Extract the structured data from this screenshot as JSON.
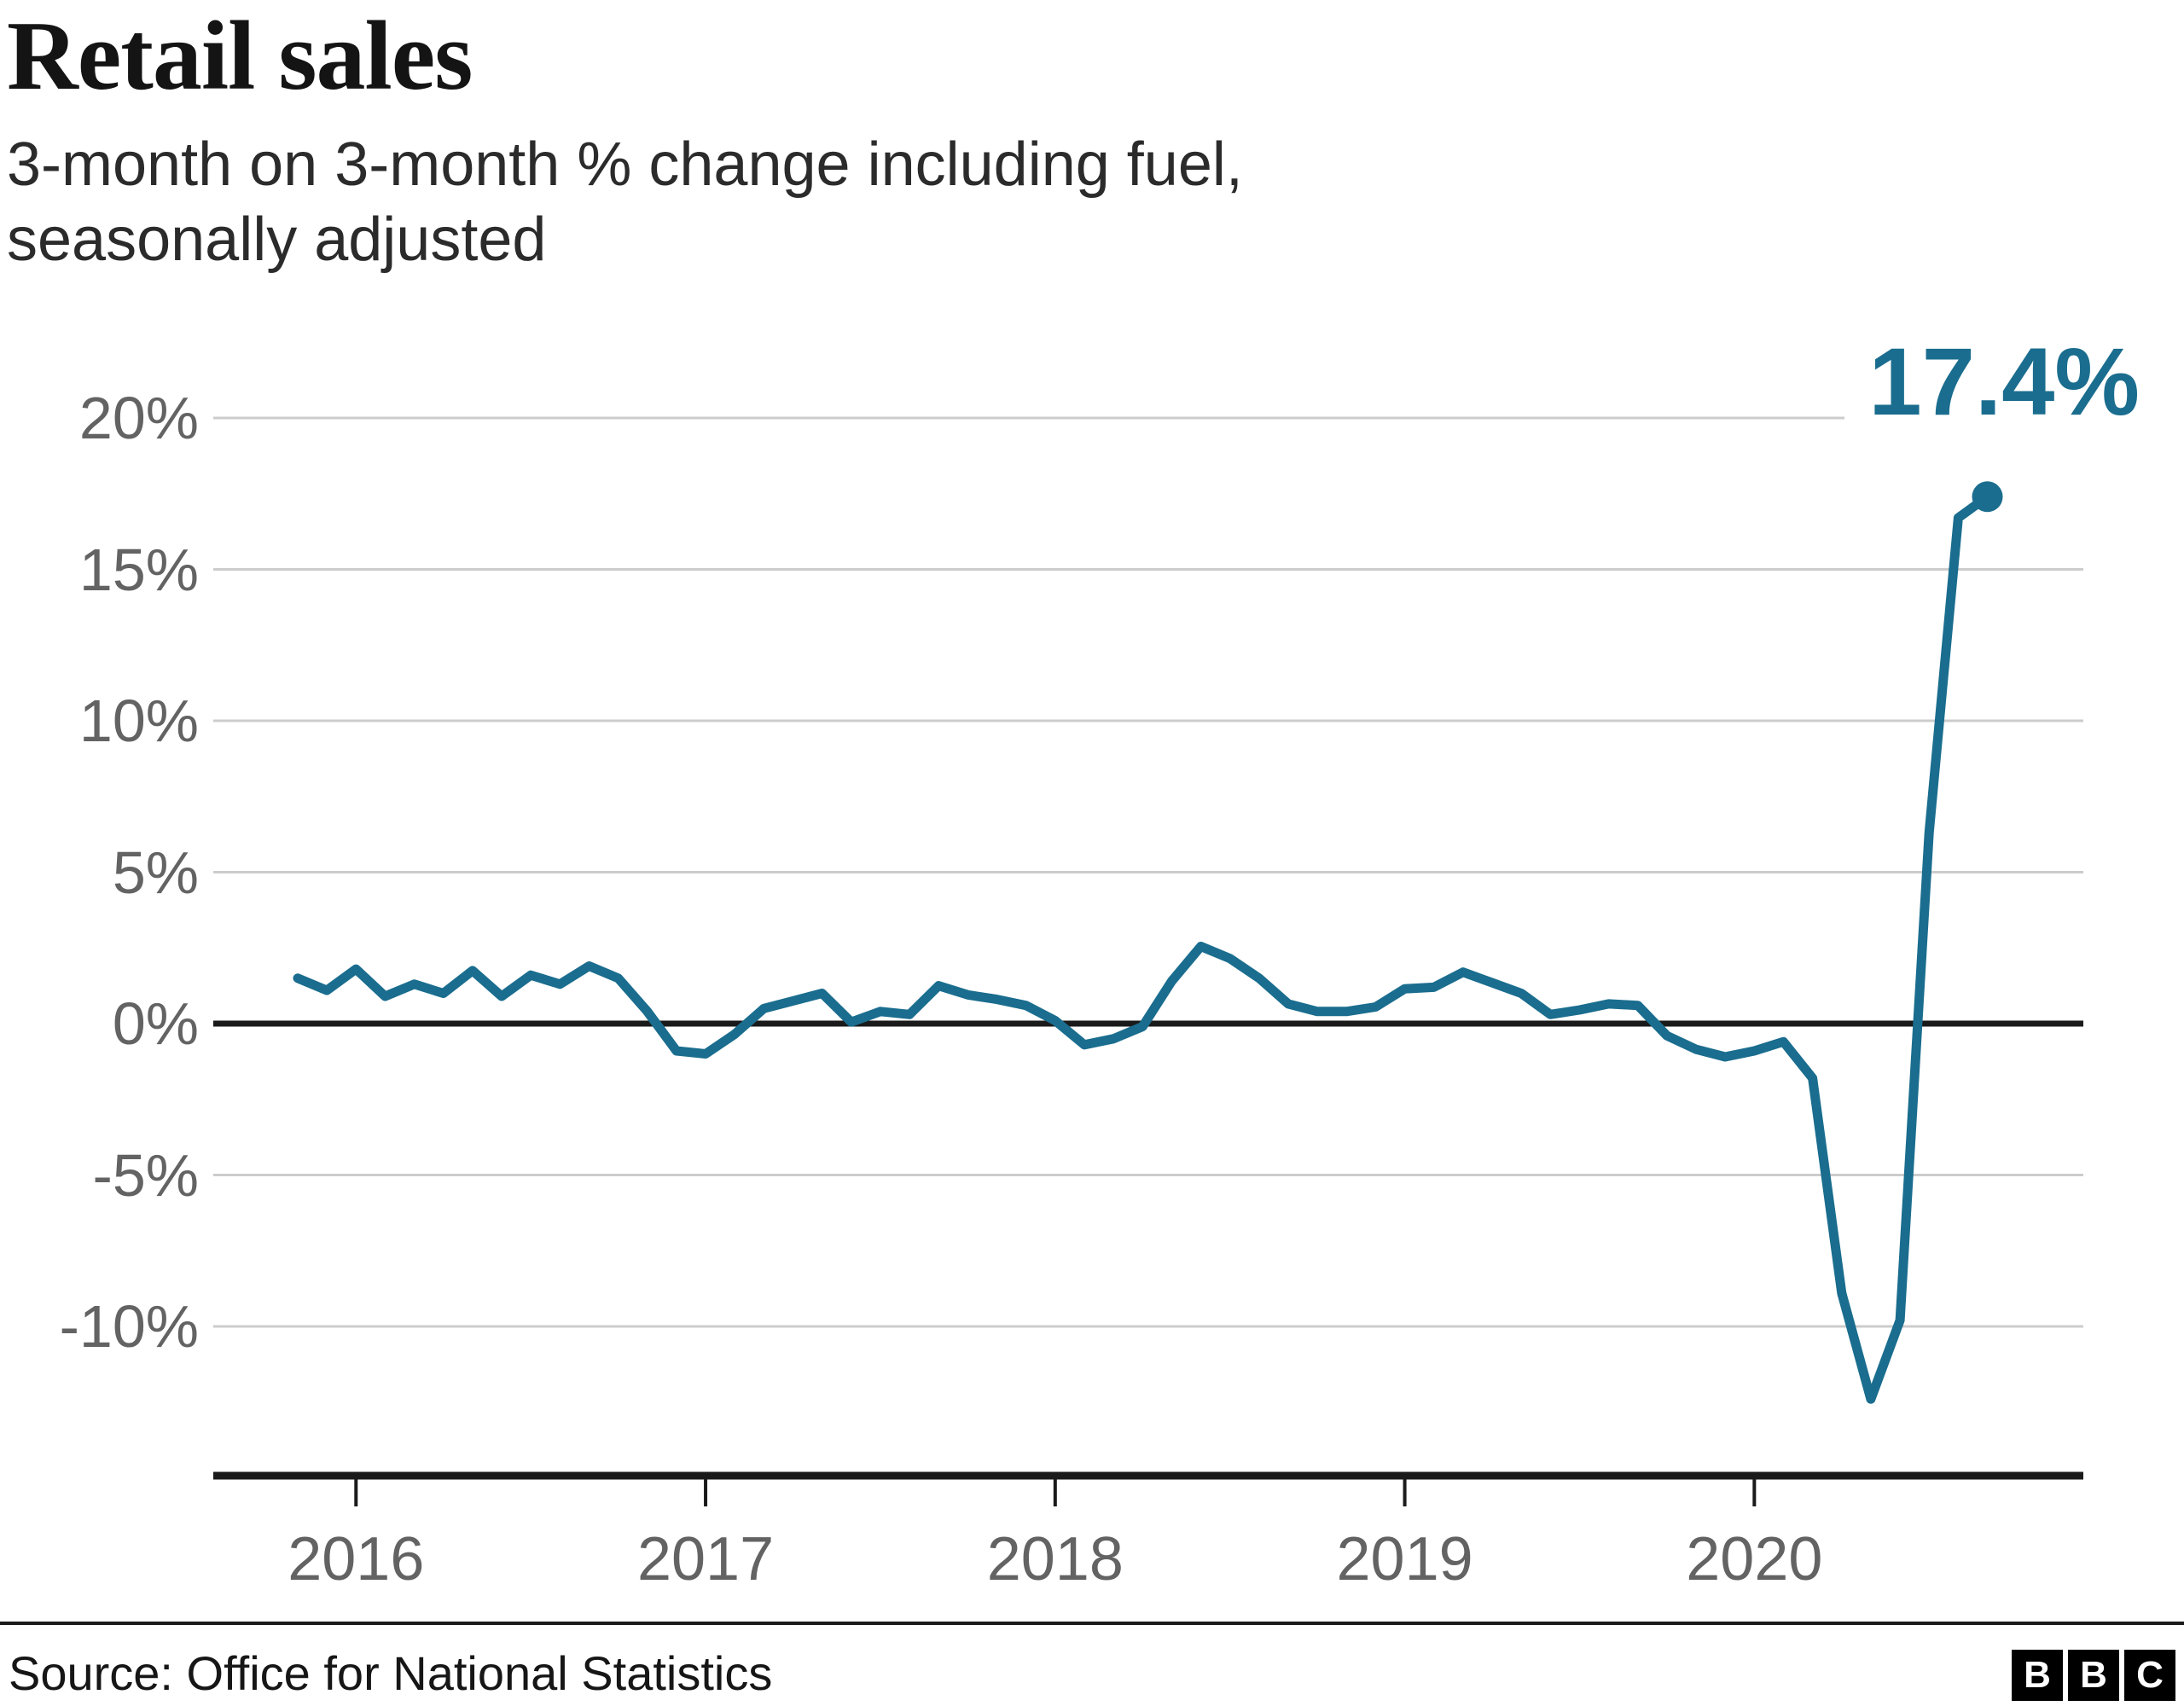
{
  "header": {
    "title": "Retail sales",
    "subtitle_line1": "3-month on 3-month % change including fuel,",
    "subtitle_line2": "seasonally adjusted"
  },
  "annotation": {
    "end_label": "17.4%"
  },
  "footer": {
    "source": "Source: Office for National Statistics",
    "logo_letters": [
      "B",
      "B",
      "C"
    ]
  },
  "colors": {
    "accent": "#1a6d8e",
    "gridline": "#cccccc",
    "axis": "#1a1a1a",
    "tick_label": "#636363"
  },
  "chart_data": {
    "type": "line",
    "title": "Retail sales",
    "subtitle": "3-month on 3-month % change including fuel, seasonally adjusted",
    "unit": "%",
    "ylim": [
      -15,
      21
    ],
    "grid": "horizontal",
    "legend": "none",
    "source": "Office for National Statistics",
    "yticks": [
      {
        "value": 20,
        "label": "20%"
      },
      {
        "value": 15,
        "label": "15%"
      },
      {
        "value": 10,
        "label": "10%"
      },
      {
        "value": 5,
        "label": "5%"
      },
      {
        "value": 0,
        "label": "0%"
      },
      {
        "value": -5,
        "label": "-5%"
      },
      {
        "value": -10,
        "label": "-10%"
      }
    ],
    "xticks": [
      {
        "index": 2,
        "label": "2016"
      },
      {
        "index": 14,
        "label": "2017"
      },
      {
        "index": 26,
        "label": "2018"
      },
      {
        "index": 38,
        "label": "2019"
      },
      {
        "index": 50,
        "label": "2020"
      }
    ],
    "x": [
      "2015-11",
      "2015-12",
      "2016-01",
      "2016-02",
      "2016-03",
      "2016-04",
      "2016-05",
      "2016-06",
      "2016-07",
      "2016-08",
      "2016-09",
      "2016-10",
      "2016-11",
      "2016-12",
      "2017-01",
      "2017-02",
      "2017-03",
      "2017-04",
      "2017-05",
      "2017-06",
      "2017-07",
      "2017-08",
      "2017-09",
      "2017-10",
      "2017-11",
      "2017-12",
      "2018-01",
      "2018-02",
      "2018-03",
      "2018-04",
      "2018-05",
      "2018-06",
      "2018-07",
      "2018-08",
      "2018-09",
      "2018-10",
      "2018-11",
      "2018-12",
      "2019-01",
      "2019-02",
      "2019-03",
      "2019-04",
      "2019-05",
      "2019-06",
      "2019-07",
      "2019-08",
      "2019-09",
      "2019-10",
      "2019-11",
      "2019-12",
      "2020-01",
      "2020-02",
      "2020-03",
      "2020-04",
      "2020-05",
      "2020-06",
      "2020-07",
      "2020-08",
      "2020-09"
    ],
    "values": [
      1.5,
      1.1,
      1.8,
      0.9,
      1.3,
      1.0,
      1.75,
      0.9,
      1.6,
      1.3,
      1.9,
      1.5,
      0.4,
      -0.9,
      -1.0,
      -0.35,
      0.5,
      0.75,
      1.0,
      0.05,
      0.4,
      0.3,
      1.25,
      0.95,
      0.8,
      0.6,
      0.1,
      -0.7,
      -0.5,
      -0.1,
      1.4,
      2.55,
      2.15,
      1.5,
      0.65,
      0.4,
      0.4,
      0.55,
      1.15,
      1.2,
      1.7,
      1.35,
      1.0,
      0.3,
      0.45,
      0.65,
      0.6,
      -0.4,
      -0.85,
      -1.1,
      -0.9,
      -0.6,
      -1.8,
      -8.9,
      -12.4,
      -9.8,
      6.3,
      16.7,
      17.4
    ],
    "end_point": {
      "x": "2020-09",
      "value": 17.4,
      "label": "17.4%"
    }
  }
}
